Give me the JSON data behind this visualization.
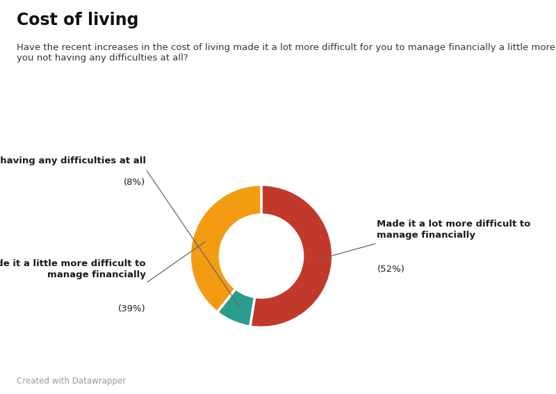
{
  "title": "Cost of living",
  "subtitle": "Have the recent increases in the cost of living made it a lot more difficult for you to manage financially a little more difficult or are\nyou not having any difficulties at all?",
  "footer": "Created with Datawrapper",
  "slices": [
    {
      "label_bold": "Made it a lot more difficult to\nmanage financially",
      "label_pct": "(52%)",
      "pct": 52,
      "color": "#C0392B"
    },
    {
      "label_bold": "Made it a little more difficult to\nmanage financially",
      "label_pct": "(39%)",
      "pct": 39,
      "color": "#F39C12"
    },
    {
      "label_bold": "Not having any difficulties at all",
      "label_pct": "(8%)",
      "pct": 8,
      "color": "#2A9D8F"
    }
  ],
  "bg_color": "#FFFFFF",
  "title_fontsize": 17,
  "subtitle_fontsize": 9.5,
  "label_fontsize": 9.5,
  "footer_fontsize": 8.5,
  "line_color": "#666666"
}
